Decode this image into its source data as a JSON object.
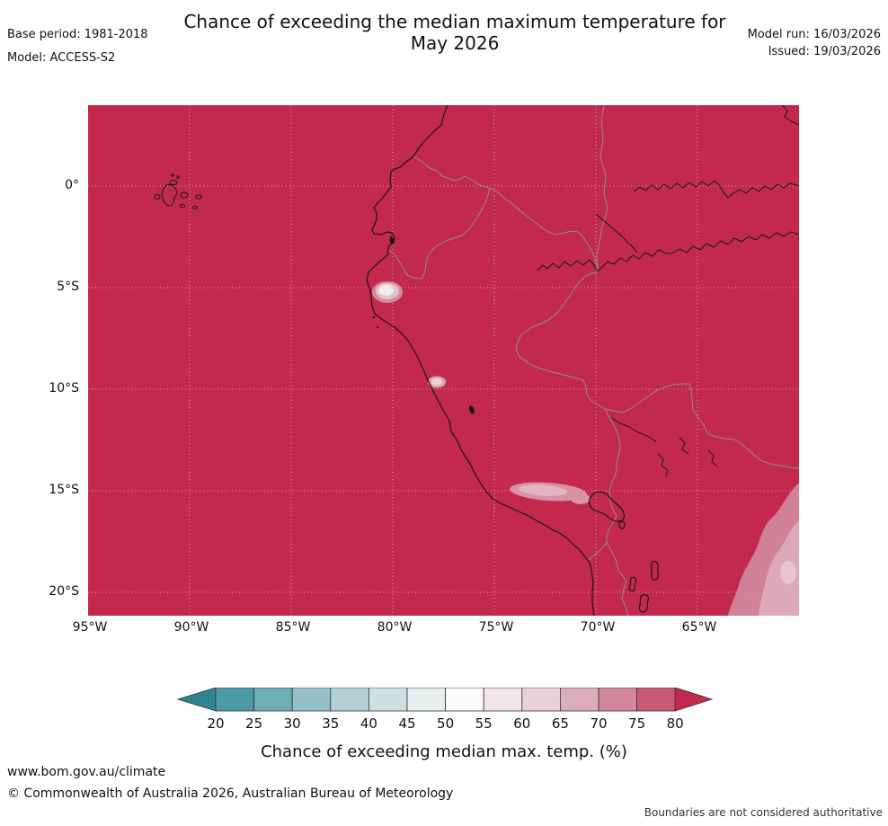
{
  "header": {
    "title_line1": "Chance of exceeding the median maximum temperature for",
    "title_line2": "May 2026",
    "base_period": "Base period: 1981-2018",
    "model": "Model: ACCESS-S2",
    "model_run": "Model run: 16/03/2026",
    "issued": "Issued: 19/03/2026"
  },
  "map": {
    "fill_color": "#c2294c",
    "gridline_color": "#bdb8b6",
    "border_color": "#8f8f8f",
    "coastline_color": "#161616",
    "y_axis_labels": [
      "0°",
      "5°S",
      "10°S",
      "15°S",
      "20°S"
    ],
    "x_axis_labels": [
      "95°W",
      "90°W",
      "85°W",
      "80°W",
      "75°W",
      "70°W",
      "65°W"
    ],
    "anomaly_colors": {
      "blob_outer": "#d58ba0",
      "blob_mid": "#e6c2cc",
      "blob_core": "#f0eeee",
      "spot_outer": "#dba2b2",
      "spot_inner": "#ead2d8",
      "strip_outer": "#d792a6",
      "strip_inner": "#e3b5c2",
      "corner_outer": "#d08097",
      "corner_mid": "#dda8b7",
      "corner_core": "#e8c4ce"
    }
  },
  "legend": {
    "caption": "Chance of exceeding median max. temp. (%)",
    "tick_labels": [
      "20",
      "25",
      "30",
      "35",
      "40",
      "45",
      "50",
      "55",
      "60",
      "65",
      "70",
      "75",
      "80"
    ],
    "left_arrow_color": "#2f8492",
    "right_arrow_color": "#c2294c",
    "segment_colors": [
      "#4d9aa7",
      "#6fadb7",
      "#93c1c7",
      "#b3d1d5",
      "#cfe0e1",
      "#e7efef",
      "#fbfbfb",
      "#f4e7ea",
      "#ead0d7",
      "#dcadbb",
      "#d2869b",
      "#c85a78"
    ]
  },
  "footer": {
    "website": "www.bom.gov.au/climate",
    "copyright": "© Commonwealth of Australia 2026, Australian Bureau of Meteorology",
    "disclaimer": "Boundaries are not considered authoritative"
  }
}
